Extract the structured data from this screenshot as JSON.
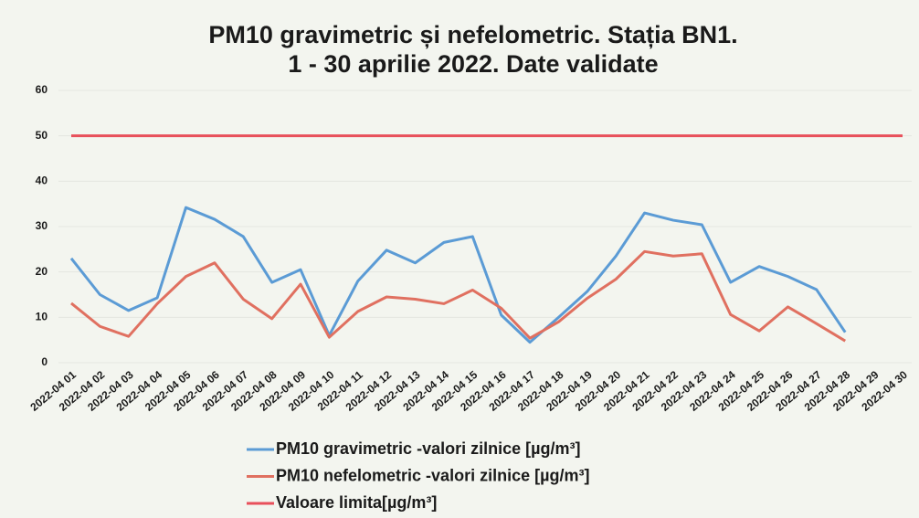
{
  "chart_data": {
    "type": "line",
    "title": "PM10 gravimetric și nefelometric.  Stația BN1.",
    "subtitle": "1 - 30 aprilie 2022. Date validate",
    "categories": [
      "2022-04 01",
      "2022-04 02",
      "2022-04 03",
      "2022-04 04",
      "2022-04 05",
      "2022-04 06",
      "2022-04 07",
      "2022-04 08",
      "2022-04 09",
      "2022-04 10",
      "2022-04 11",
      "2022-04 12",
      "2022-04 13",
      "2022-04 14",
      "2022-04 15",
      "2022-04 16",
      "2022-04 17",
      "2022-04 18",
      "2022-04 19",
      "2022-04 20",
      "2022-04 21",
      "2022-04 22",
      "2022-04 23",
      "2022-04 24",
      "2022-04 25",
      "2022-04 26",
      "2022-04 27",
      "2022-04 28",
      "2022-04 29",
      "2022-04 30"
    ],
    "series": [
      {
        "name": "PM10 gravimetric -valori zilnice [µg/m³]",
        "color": "#5b9bd5",
        "values": [
          23,
          15,
          11.5,
          14.3,
          34.2,
          31.6,
          27.8,
          17.7,
          20.5,
          6,
          18,
          24.8,
          22,
          26.5,
          27.8,
          10.5,
          4.5,
          10,
          15.7,
          23.5,
          33,
          31.4,
          30.4,
          17.7,
          21.2,
          19,
          16.1,
          6.7,
          null,
          null
        ]
      },
      {
        "name": "PM10 nefelometric -valori zilnice [µg/m³]",
        "color": "#e07060",
        "values": [
          13.1,
          8,
          5.8,
          13,
          19,
          22,
          14,
          9.7,
          17.3,
          5.6,
          11.3,
          14.5,
          14,
          13,
          16,
          12,
          5.4,
          9,
          14.2,
          18.4,
          24.5,
          23.5,
          24,
          10.6,
          7,
          12.3,
          8.6,
          4.8,
          null,
          null
        ]
      },
      {
        "name": "Valoare limita[µg/m³]",
        "color": "#e8505b",
        "values": [
          50,
          50,
          50,
          50,
          50,
          50,
          50,
          50,
          50,
          50,
          50,
          50,
          50,
          50,
          50,
          50,
          50,
          50,
          50,
          50,
          50,
          50,
          50,
          50,
          50,
          50,
          50,
          50,
          50,
          50
        ]
      }
    ],
    "ylim": [
      0,
      60
    ],
    "yticks": [
      0,
      10,
      20,
      30,
      40,
      50,
      60
    ],
    "grid": true
  }
}
